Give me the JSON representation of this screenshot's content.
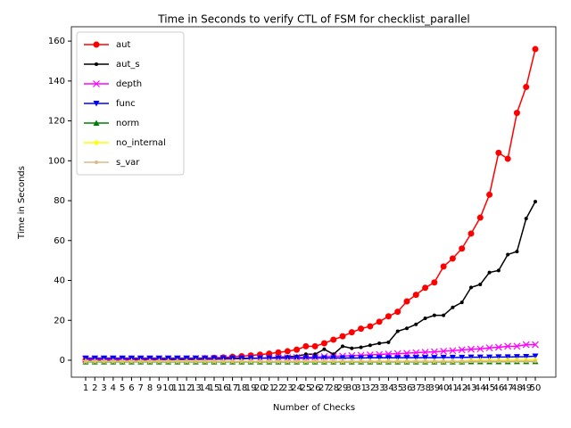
{
  "chart_data": {
    "type": "line",
    "title": "Time in Seconds to verify CTL of FSM for checklist_parallel",
    "x_label": "Number of Checks",
    "y_label": "Time in Seconds",
    "categories": [
      "1",
      "2",
      "3",
      "4",
      "5",
      "6",
      "7",
      "8",
      "9",
      "10",
      "11",
      "12",
      "13",
      "14",
      "15",
      "16",
      "17",
      "18",
      "19",
      "20",
      "21",
      "22",
      "23",
      "24",
      "25",
      "26",
      "27",
      "28",
      "29",
      "30",
      "31",
      "32",
      "33",
      "34",
      "35",
      "36",
      "37",
      "38",
      "39",
      "40",
      "41",
      "42",
      "43",
      "44",
      "45",
      "46",
      "47",
      "48",
      "49",
      "50"
    ],
    "ylim": [
      -8.5,
      167.2
    ],
    "yticks": [
      0,
      20,
      40,
      60,
      80,
      100,
      120,
      140,
      160
    ],
    "legend": "upper left",
    "series": [
      {
        "name": "aut",
        "color": "#ff0000",
        "marker": "o",
        "values": [
          0.1,
          0.1,
          0.1,
          0.2,
          0.2,
          0.2,
          0.3,
          0.3,
          0.3,
          0.4,
          0.6,
          0.7,
          0.8,
          1.0,
          1.2,
          1.4,
          1.7,
          2.0,
          2.4,
          2.8,
          3.3,
          3.9,
          4.5,
          5.3,
          7.0,
          7.0,
          8.5,
          10.3,
          12.0,
          14.0,
          15.8,
          17.0,
          19.3,
          22.0,
          24.3,
          29.5,
          32.8,
          36.3,
          39.0,
          47.0,
          51.0,
          56.0,
          63.5,
          71.5,
          83.0,
          104.0,
          101.0,
          124.0,
          137.0,
          156.0
        ]
      },
      {
        "name": "aut_s",
        "color": "#000000",
        "marker": ".",
        "values": [
          0.1,
          0.1,
          0.1,
          0.1,
          0.2,
          0.2,
          0.2,
          0.2,
          0.3,
          0.3,
          0.3,
          0.4,
          0.4,
          0.5,
          0.5,
          0.6,
          0.7,
          0.8,
          0.9,
          1.0,
          1.2,
          1.5,
          1.8,
          2.0,
          3.0,
          3.0,
          5.5,
          3.0,
          7.0,
          6.0,
          6.5,
          7.5,
          8.5,
          9.0,
          14.5,
          16.0,
          18.0,
          21.0,
          22.5,
          22.5,
          26.5,
          29.0,
          36.5,
          38.0,
          44.0,
          45.0,
          53.0,
          54.5,
          71.0,
          79.5
        ]
      },
      {
        "name": "depth",
        "color": "#ff00ff",
        "marker": "x",
        "values": [
          0.5,
          0.5,
          0.5,
          0.5,
          0.5,
          0.6,
          0.6,
          0.6,
          0.6,
          0.7,
          0.7,
          0.7,
          0.8,
          0.8,
          0.8,
          0.9,
          0.9,
          1.0,
          1.0,
          1.1,
          1.1,
          1.2,
          1.3,
          1.4,
          1.5,
          1.6,
          1.8,
          1.9,
          2.1,
          2.3,
          2.5,
          2.7,
          2.9,
          3.1,
          3.3,
          3.5,
          3.8,
          4.0,
          4.2,
          4.5,
          4.8,
          5.2,
          5.5,
          5.7,
          6.2,
          6.5,
          7.0,
          7.0,
          7.8,
          7.8
        ]
      },
      {
        "name": "func",
        "color": "#0000ff",
        "marker": "v",
        "values": [
          1.0,
          1.0,
          1.0,
          1.0,
          1.0,
          1.0,
          1.0,
          1.0,
          1.0,
          1.0,
          1.0,
          1.0,
          1.0,
          1.0,
          1.0,
          1.0,
          1.0,
          1.0,
          1.0,
          1.0,
          1.0,
          1.0,
          1.0,
          1.0,
          1.0,
          1.1,
          1.1,
          1.1,
          1.1,
          1.1,
          1.1,
          1.2,
          1.2,
          1.2,
          1.2,
          1.3,
          1.3,
          1.3,
          1.3,
          1.4,
          1.4,
          1.4,
          1.5,
          1.5,
          1.5,
          1.6,
          1.6,
          1.7,
          1.8,
          2.0
        ]
      },
      {
        "name": "norm",
        "color": "#008000",
        "marker": "^",
        "values": [
          -0.8,
          -0.8,
          -0.8,
          -0.8,
          -0.8,
          -0.8,
          -0.8,
          -0.8,
          -0.8,
          -0.8,
          -0.8,
          -0.8,
          -0.8,
          -0.8,
          -0.8,
          -0.8,
          -0.8,
          -0.8,
          -0.8,
          -0.8,
          -0.8,
          -0.8,
          -0.8,
          -0.8,
          -0.8,
          -0.8,
          -0.8,
          -0.8,
          -0.8,
          -0.8,
          -0.8,
          -0.8,
          -0.8,
          -0.8,
          -0.8,
          -0.8,
          -0.8,
          -0.8,
          -0.8,
          -0.8,
          -0.8,
          -0.8,
          -0.7,
          -0.7,
          -0.7,
          -0.7,
          -0.7,
          -0.6,
          -0.6,
          -0.6
        ]
      },
      {
        "name": "no_internal",
        "color": "#ffff00",
        "marker": "*",
        "values": [
          -0.5,
          -0.5,
          -0.5,
          -0.5,
          -0.5,
          -0.5,
          -0.5,
          -0.5,
          -0.5,
          -0.5,
          -0.5,
          -0.5,
          -0.5,
          -0.5,
          -0.5,
          -0.5,
          -0.5,
          -0.5,
          -0.5,
          -0.5,
          -0.5,
          -0.5,
          -0.5,
          -0.5,
          -0.5,
          -0.5,
          -0.5,
          -0.5,
          -0.5,
          -0.5,
          -0.5,
          -0.5,
          -0.5,
          -0.5,
          -0.5,
          -0.5,
          -0.5,
          -0.5,
          -0.5,
          -0.5,
          -0.5,
          -0.5,
          0.0,
          0.0,
          0.0,
          0.0,
          0.1,
          0.1,
          0.1,
          0.2
        ]
      },
      {
        "name": "s_var",
        "color": "#deb887",
        "marker": "p",
        "values": [
          -0.6,
          -0.6,
          -0.6,
          -0.6,
          -0.6,
          -0.6,
          -0.6,
          -0.6,
          -0.6,
          -0.6,
          -0.6,
          -0.6,
          -0.6,
          -0.6,
          -0.6,
          -0.6,
          -0.6,
          -0.6,
          -0.6,
          -0.6,
          -0.6,
          -0.6,
          -0.6,
          -0.6,
          -0.6,
          -0.6,
          -0.6,
          -0.6,
          -0.6,
          -0.6,
          -0.6,
          -0.6,
          -0.6,
          -0.6,
          -0.6,
          -0.6,
          -0.6,
          -0.6,
          -0.6,
          -0.6,
          -0.6,
          -0.6,
          -0.5,
          -0.5,
          -0.5,
          -0.5,
          -0.5,
          -0.5,
          -0.5,
          -0.5
        ]
      }
    ]
  }
}
